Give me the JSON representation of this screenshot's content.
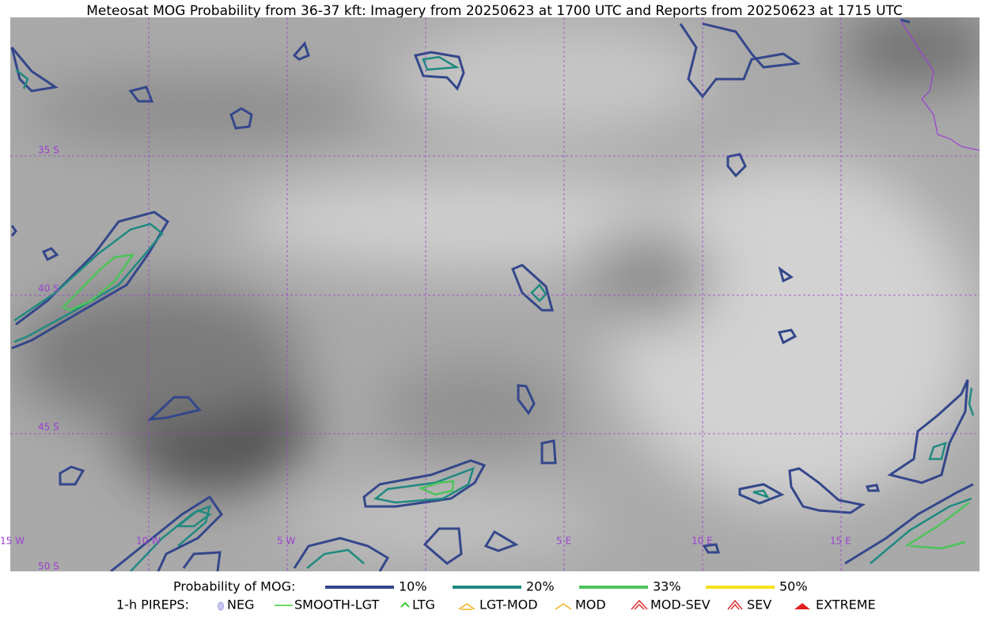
{
  "header": {
    "title": "Meteosat MOG Probability from 36-37 kft: Imagery from 20250623 at 1700 UTC and Reports from 20250623 at 1715 UTC"
  },
  "map": {
    "lat_labels": [
      "35 S",
      "40 S",
      "45 S",
      "50 S"
    ],
    "lon_labels": [
      "15 W",
      "10 W",
      "5 W",
      "5 E",
      "10 E",
      "15 E"
    ]
  },
  "legend": {
    "probability": {
      "title": "Probability of MOG:",
      "items": [
        {
          "label": "10%",
          "color": "#34478b"
        },
        {
          "label": "20%",
          "color": "#1f8a80"
        },
        {
          "label": "33%",
          "color": "#4cc45a"
        },
        {
          "label": "50%",
          "color": "#f4e11a"
        }
      ]
    },
    "pireps": {
      "title": "1-h PIREPS:",
      "items": [
        "NEG",
        "SMOOTH-LGT",
        "LTG",
        "LGT-MOD",
        "MOD",
        "MOD-SEV",
        "SEV",
        "EXTREME"
      ]
    }
  }
}
